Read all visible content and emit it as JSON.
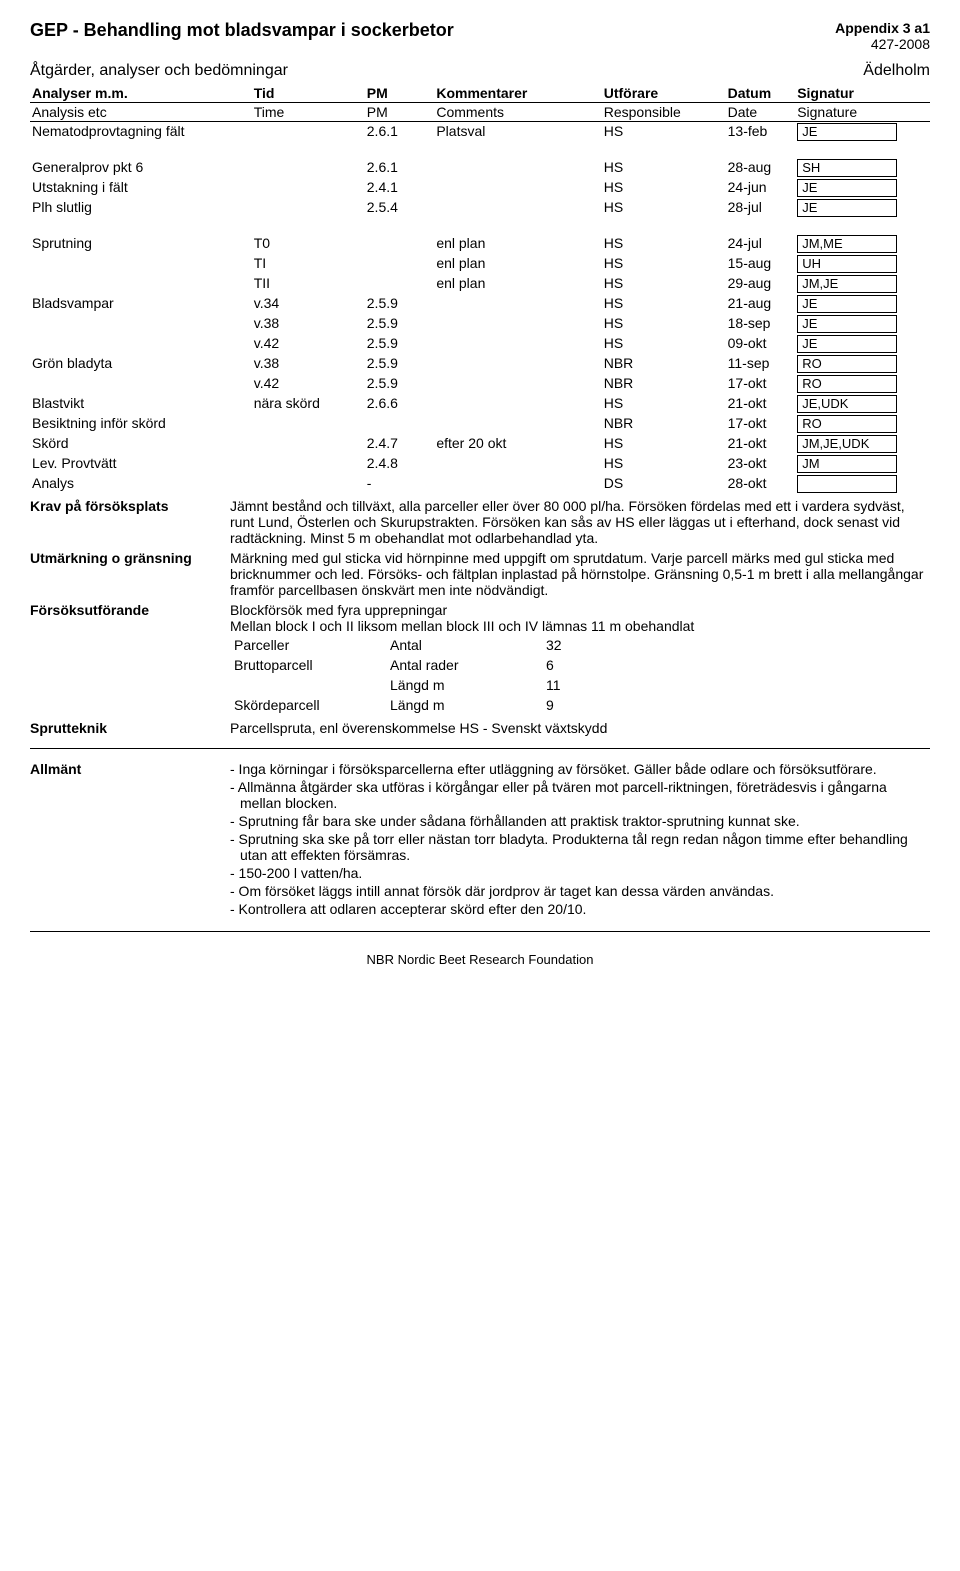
{
  "header": {
    "title": "GEP -  Behandling mot bladsvampar i sockerbetor",
    "appendix": "Appendix 3 a1",
    "code": "427-2008",
    "subtitle": "Åtgärder, analyser och bedömningar",
    "location": "Ädelholm"
  },
  "table_head": {
    "c1a": "Analyser m.m.",
    "c2a": "Tid",
    "c3a": "PM",
    "c4a": "Kommentarer",
    "c5a": "Utförare",
    "c6a": "Datum",
    "c7a": "Signatur",
    "c1b": "Analysis etc",
    "c2b": "Time",
    "c3b": "PM",
    "c4b": "Comments",
    "c5b": "Responsible",
    "c6b": "Date",
    "c7b": "Signature"
  },
  "rows": [
    {
      "a": "Nematodprovtagning fält",
      "b": "",
      "c": "2.6.1",
      "d": "Platsval",
      "e": "HS",
      "f": "13-feb",
      "g": "JE",
      "box": true,
      "gap_after": true
    },
    {
      "a": "Generalprov pkt 6",
      "b": "",
      "c": "2.6.1",
      "d": "",
      "e": "HS",
      "f": "28-aug",
      "g": "SH",
      "box": true
    },
    {
      "a": "Utstakning i fält",
      "b": "",
      "c": "2.4.1",
      "d": "",
      "e": "HS",
      "f": "24-jun",
      "g": "JE",
      "box": true
    },
    {
      "a": "Plh slutlig",
      "b": "",
      "c": "2.5.4",
      "d": "",
      "e": "HS",
      "f": "28-jul",
      "g": "JE",
      "box": true,
      "gap_after": true
    },
    {
      "a": "Sprutning",
      "b": "T0",
      "c": "",
      "d": "enl plan",
      "e": "HS",
      "f": "24-jul",
      "g": "JM,ME",
      "box": true
    },
    {
      "a": "",
      "b": "TI",
      "c": "",
      "d": "enl plan",
      "e": "HS",
      "f": "15-aug",
      "g": "UH",
      "box": true
    },
    {
      "a": "",
      "b": "TII",
      "c": "",
      "d": "enl plan",
      "e": "HS",
      "f": "29-aug",
      "g": "JM,JE",
      "box": true
    },
    {
      "a": "Bladsvampar",
      "b": "v.34",
      "c": "2.5.9",
      "d": "",
      "e": "HS",
      "f": "21-aug",
      "g": "JE",
      "box": true
    },
    {
      "a": "",
      "b": "v.38",
      "c": "2.5.9",
      "d": "",
      "e": "HS",
      "f": "18-sep",
      "g": "JE",
      "box": true
    },
    {
      "a": "",
      "b": "v.42",
      "c": "2.5.9",
      "d": "",
      "e": "HS",
      "f": "09-okt",
      "g": "JE",
      "box": true
    },
    {
      "a": "Grön bladyta",
      "b": "v.38",
      "c": "2.5.9",
      "d": "",
      "e": "NBR",
      "f": "11-sep",
      "g": "RO",
      "box": true
    },
    {
      "a": "",
      "b": "v.42",
      "c": "2.5.9",
      "d": "",
      "e": "NBR",
      "f": "17-okt",
      "g": "RO",
      "box": true
    },
    {
      "a": "Blastvikt",
      "b": "nära skörd",
      "c": "2.6.6",
      "d": "",
      "e": "HS",
      "f": "21-okt",
      "g": "JE,UDK",
      "box": true
    },
    {
      "a": "Besiktning inför skörd",
      "b": "",
      "c": "",
      "d": "",
      "e": "NBR",
      "f": "17-okt",
      "g": "RO",
      "box": true
    },
    {
      "a": "Skörd",
      "b": "",
      "c": "2.4.7",
      "d": "efter 20 okt",
      "e": "HS",
      "f": "21-okt",
      "g": "JM,JE,UDK",
      "box": true
    },
    {
      "a": "Lev. Provtvätt",
      "b": "",
      "c": "2.4.8",
      "d": "",
      "e": "HS",
      "f": "23-okt",
      "g": "JM",
      "box": true
    },
    {
      "a": "Analys",
      "b": "",
      "c": "-",
      "d": "",
      "e": "DS",
      "f": "28-okt",
      "g": "",
      "box": true
    }
  ],
  "notes": {
    "krav_label": "Krav på försöksplats",
    "krav_text": "Jämnt bestånd och tillväxt, alla parceller eller över 80 000 pl/ha. Försöken fördelas med ett i vardera sydväst, runt Lund, Österlen och Skurupstrakten. Försöken kan sås av HS eller läggas ut i efterhand, dock senast vid radtäckning. Minst 5 m obehandlat mot odlarbehandlad yta.",
    "utm_label": "Utmärkning o gränsning",
    "utm_text": "Märkning med gul sticka vid hörnpinne med uppgift om sprutdatum. Varje parcell märks med gul sticka med bricknummer och led. Försöks- och fältplan inplastad på hörnstolpe. Gränsning 0,5-1 m brett i alla mellangångar framför parcellbasen önskvärt men inte nödvändigt.",
    "fu_label": "Försöksutförande",
    "fu_line1": "Blockförsök med fyra upprepningar",
    "fu_line2": "Mellan block I och II liksom mellan block III och IV lämnas 11 m obehandlat",
    "fu_rows": [
      {
        "a": "Parceller",
        "b": "Antal",
        "c": "32"
      },
      {
        "a": "Bruttoparcell",
        "b": "Antal rader",
        "c": "6"
      },
      {
        "a": "",
        "b": "Längd m",
        "c": "11"
      },
      {
        "a": "Skördeparcell",
        "b": "Längd m",
        "c": "9"
      }
    ],
    "sp_label": "Sprutteknik",
    "sp_text": "Parcellspruta, enl överenskommelse HS - Svenskt växtskydd",
    "all_label": "Allmänt",
    "all_items": [
      "- Inga körningar i försöksparcellerna efter utläggning av försöket. Gäller både odlare och försöksutförare.",
      "- Allmänna åtgärder ska utföras i körgångar eller på tvären mot parcell-riktningen, företrädesvis i gångarna mellan blocken.",
      "- Sprutning får bara ske under sådana förhållanden att praktisk traktor-sprutning kunnat ske.",
      "- Sprutning ska ske på torr eller nästan torr bladyta. Produkterna tål regn redan någon timme efter behandling utan att effekten försämras.",
      "- 150-200 l vatten/ha.",
      "- Om försöket läggs intill annat försök där jordprov är taget kan dessa värden användas.",
      "- Kontrollera att odlaren accepterar skörd efter den 20/10."
    ]
  },
  "footer": "NBR Nordic Beet Research Foundation"
}
